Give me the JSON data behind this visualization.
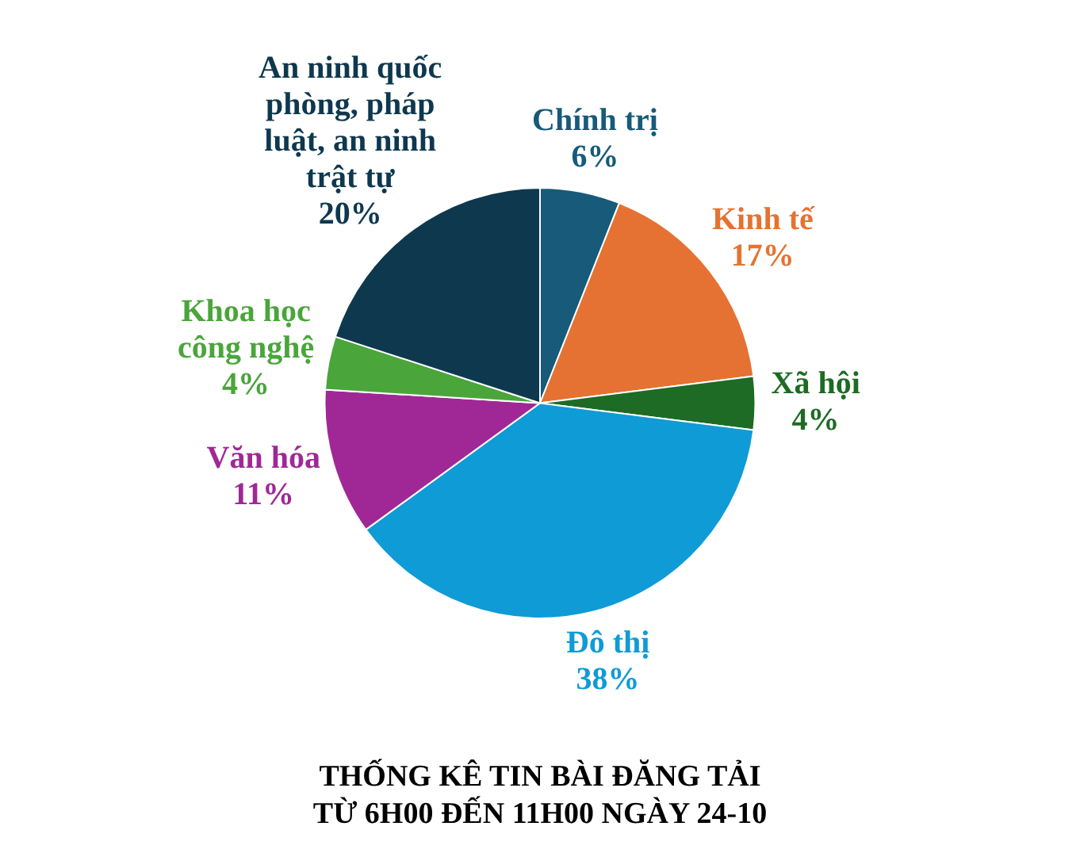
{
  "chart_data": {
    "type": "pie",
    "title": "THỐNG KÊ TIN BÀI ĐĂNG TẢI\nTỪ 6H00 ĐẾN 11H00 NGÀY 24-10",
    "categories": [
      "Chính trị",
      "Kinh tế",
      "Xã hội",
      "Đô thị",
      "Văn hóa",
      "Khoa học công nghệ",
      "An ninh quốc phòng, pháp luật, an ninh trật tự"
    ],
    "values": [
      6,
      17,
      4,
      38,
      11,
      4,
      20
    ],
    "colors": [
      "#175a7a",
      "#e57232",
      "#1d6b24",
      "#0f9bd6",
      "#a02896",
      "#4aa53b",
      "#0e384e"
    ],
    "value_labels": [
      "6%",
      "17%",
      "4%",
      "38%",
      "11%",
      "4%",
      "20%"
    ]
  }
}
